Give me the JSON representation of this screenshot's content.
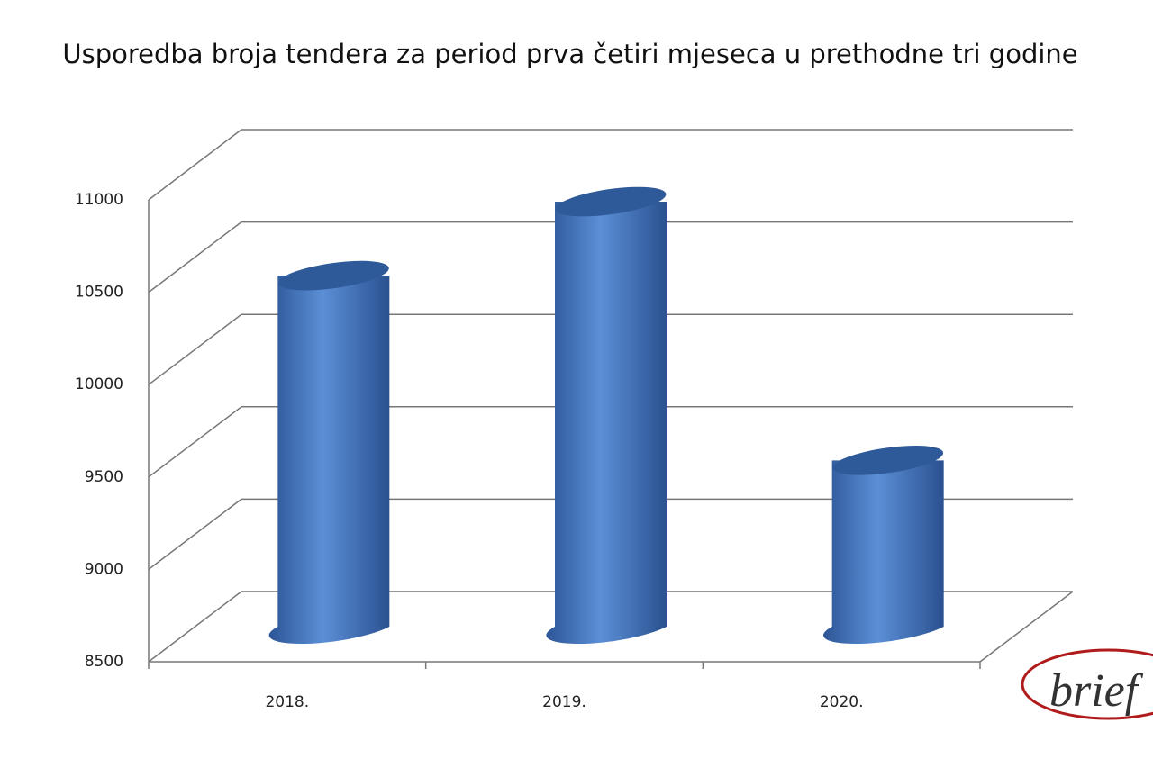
{
  "chart_data": {
    "type": "bar",
    "title": "Usporedba broja tendera za period prva četiri mjeseca u prethodne tri godine",
    "categories": [
      "2018.",
      "2019.",
      "2020."
    ],
    "values": [
      10400,
      10800,
      9400
    ],
    "color": "#4a7cc4",
    "ylim": [
      8500,
      11000
    ],
    "yticks": [
      8500,
      9000,
      9500,
      10000,
      10500,
      11000
    ],
    "grid": true,
    "watermark": "brief"
  }
}
